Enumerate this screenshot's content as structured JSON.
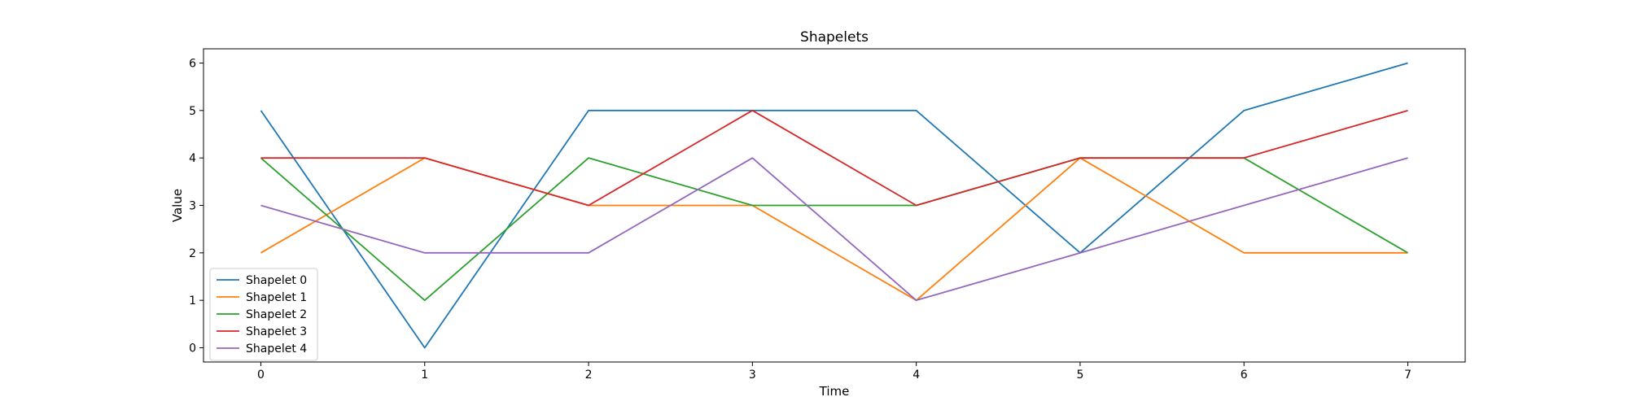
{
  "chart_data": {
    "type": "line",
    "title": "Shapelets",
    "xlabel": "Time",
    "ylabel": "Value",
    "x": [
      0,
      1,
      2,
      3,
      4,
      5,
      6,
      7
    ],
    "xlim": [
      -0.35,
      7.35
    ],
    "ylim": [
      -0.3,
      6.3
    ],
    "xticks": [
      "0",
      "1",
      "2",
      "3",
      "4",
      "5",
      "6",
      "7"
    ],
    "yticks": [
      "0",
      "1",
      "2",
      "3",
      "4",
      "5",
      "6"
    ],
    "grid": false,
    "legend_position": "lower-left",
    "series": [
      {
        "name": "Shapelet 0",
        "color": "#1f77b4",
        "values": [
          5,
          0,
          5,
          5,
          5,
          2,
          5,
          6
        ]
      },
      {
        "name": "Shapelet 1",
        "color": "#ff7f0e",
        "values": [
          2,
          4,
          3,
          3,
          1,
          4,
          2,
          2
        ]
      },
      {
        "name": "Shapelet 2",
        "color": "#2ca02c",
        "values": [
          4,
          1,
          4,
          3,
          3,
          4,
          4,
          2
        ]
      },
      {
        "name": "Shapelet 3",
        "color": "#d62728",
        "values": [
          4,
          4,
          3,
          5,
          3,
          4,
          4,
          5
        ]
      },
      {
        "name": "Shapelet 4",
        "color": "#9467bd",
        "values": [
          3,
          2,
          2,
          4,
          1,
          2,
          3,
          4
        ]
      }
    ]
  }
}
